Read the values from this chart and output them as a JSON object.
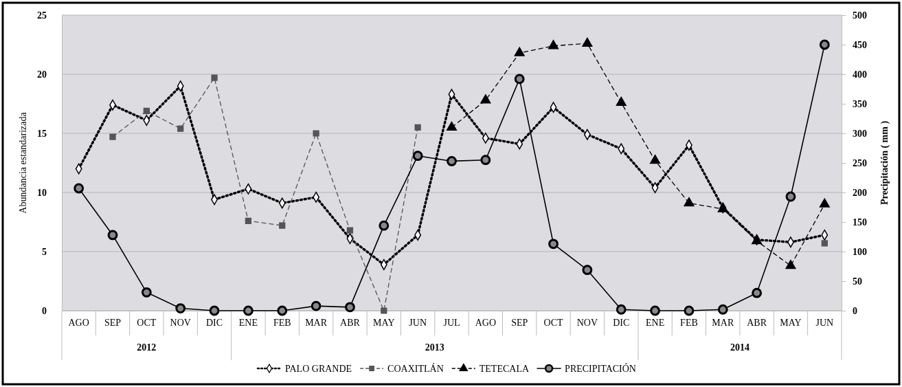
{
  "chart_data": {
    "type": "line",
    "ylabel": "Abundancia estandarizada",
    "y2label": "Precipitación ( mm )",
    "categories": [
      "AGO",
      "SEP",
      "OCT",
      "NOV",
      "DIC",
      "ENE",
      "FEB",
      "MAR",
      "ABR",
      "MAY",
      "JUN",
      "JUL",
      "AGO",
      "SEP",
      "OCT",
      "NOV",
      "DIC",
      "ENE",
      "FEB",
      "MAR",
      "ABR",
      "MAY",
      "JUN"
    ],
    "annotations": [
      "2012",
      "2013",
      "2014"
    ],
    "series": [
      {
        "name": "PALO GRANDE",
        "color": "#000000",
        "marker": "diamond",
        "line_style": "dotted",
        "values": [
          12.0,
          17.4,
          16.1,
          19.0,
          9.4,
          10.3,
          9.1,
          9.6,
          6.1,
          3.9,
          6.4,
          18.3,
          14.6,
          14.1,
          17.2,
          14.9,
          13.7,
          10.4,
          14.0,
          8.7,
          6.0,
          5.8,
          6.4
        ]
      },
      {
        "name": "COAXITLÁN",
        "color": "#555555",
        "marker": "square",
        "line_style": "dashed",
        "values": [
          null,
          14.7,
          16.9,
          15.4,
          19.7,
          7.6,
          7.2,
          15.0,
          6.8,
          0,
          15.5,
          null,
          null,
          null,
          null,
          null,
          null,
          null,
          null,
          null,
          null,
          null,
          5.7
        ]
      },
      {
        "name": "TETECALA",
        "color": "#000000",
        "marker": "triangle",
        "line_style": "dashed",
        "values": [
          null,
          null,
          null,
          null,
          null,
          null,
          null,
          null,
          null,
          null,
          null,
          15.5,
          17.8,
          21.8,
          22.4,
          22.6,
          17.6,
          12.7,
          9.1,
          8.6,
          5.9,
          3.8,
          9.0
        ]
      },
      {
        "name": "PRECIPITACIÓN",
        "color": "#000000",
        "marker": "circle",
        "line_style": "solid",
        "axis": "y2",
        "values": [
          207,
          128,
          31,
          4,
          0,
          0,
          0,
          8,
          6,
          144,
          262,
          253,
          255,
          392,
          113,
          69,
          2,
          0,
          0,
          2,
          30,
          193,
          450
        ]
      }
    ],
    "ylim": [
      0,
      25
    ],
    "yticks": [
      0,
      5,
      10,
      15,
      20,
      25
    ],
    "y2lim": [
      0,
      500
    ],
    "y2ticks": [
      0,
      50,
      100,
      150,
      200,
      250,
      300,
      350,
      400,
      450,
      500
    ],
    "grid": "y",
    "legend": "bottom"
  }
}
